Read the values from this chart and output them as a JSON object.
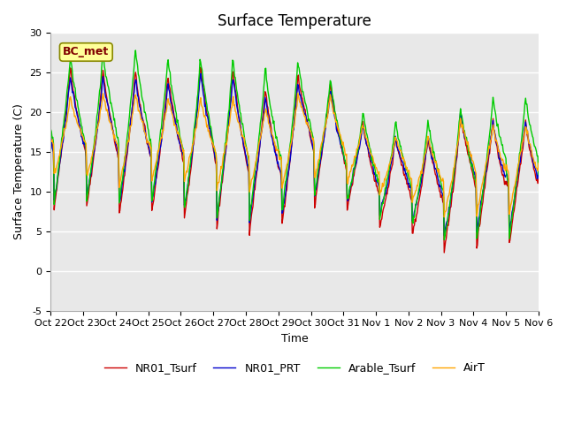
{
  "title": "Surface Temperature",
  "ylabel": "Surface Temperature (C)",
  "xlabel": "Time",
  "ylim": [
    -5,
    30
  ],
  "yticks": [
    -5,
    0,
    5,
    10,
    15,
    20,
    25,
    30
  ],
  "annotation": "BC_met",
  "bg_color": "#e8e8e8",
  "grid_color": "white",
  "series": [
    "NR01_Tsurf",
    "NR01_PRT",
    "Arable_Tsurf",
    "AirT"
  ],
  "colors": [
    "#cc0000",
    "#0000cc",
    "#00cc00",
    "#ffa500"
  ],
  "xtick_labels": [
    "Oct 22",
    "Oct 23",
    "Oct 24",
    "Oct 25",
    "Oct 26",
    "Oct 27",
    "Oct 28",
    "Oct 29",
    "Oct 30",
    "Oct 31",
    "Nov 1",
    "Nov 2",
    "Nov 3",
    "Nov 4",
    "Nov 5",
    "Nov 6"
  ],
  "n_points": 720,
  "days": 15,
  "title_fontsize": 12,
  "label_fontsize": 9,
  "tick_fontsize": 8
}
